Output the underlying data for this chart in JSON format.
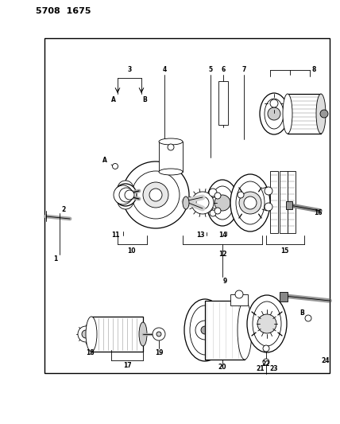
{
  "title": "5708  1675",
  "bg_color": "#ffffff",
  "fig_width": 4.28,
  "fig_height": 5.33,
  "dpi": 100,
  "border": [
    0.13,
    0.09,
    0.97,
    0.88
  ]
}
